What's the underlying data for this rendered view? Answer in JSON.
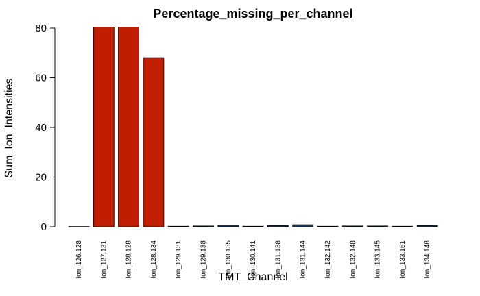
{
  "chart_data": {
    "type": "bar",
    "title": "Percentage_missing_per_channel",
    "xlabel": "TMT_Channel",
    "ylabel": "Sum_Ion_Intensities",
    "ylim": [
      0,
      80
    ],
    "yticks": [
      0,
      20,
      40,
      60,
      80
    ],
    "categories": [
      "Ion_126.128",
      "Ion_127.131",
      "Ion_128.128",
      "Ion_128.134",
      "Ion_129.131",
      "Ion_129.138",
      "Ion_130.135",
      "Ion_130.141",
      "Ion_131.138",
      "Ion_131.144",
      "Ion_132.142",
      "Ion_132.148",
      "Ion_133.145",
      "Ion_133.151",
      "Ion_134.148"
    ],
    "values": [
      0.1,
      80.4,
      80.4,
      68.1,
      0.2,
      0.3,
      0.6,
      0.2,
      0.5,
      0.8,
      0.2,
      0.3,
      0.3,
      0.2,
      0.5
    ],
    "bar_colors": [
      "#1b3a5c",
      "#c11e00",
      "#c11e00",
      "#c11e00",
      "#1b3a5c",
      "#1b3a5c",
      "#1b3a5c",
      "#1b3a5c",
      "#1b3a5c",
      "#1b3a5c",
      "#1b3a5c",
      "#1b3a5c",
      "#1b3a5c",
      "#1b3a5c",
      "#1b3a5c"
    ],
    "grid": false,
    "legend": "none"
  }
}
